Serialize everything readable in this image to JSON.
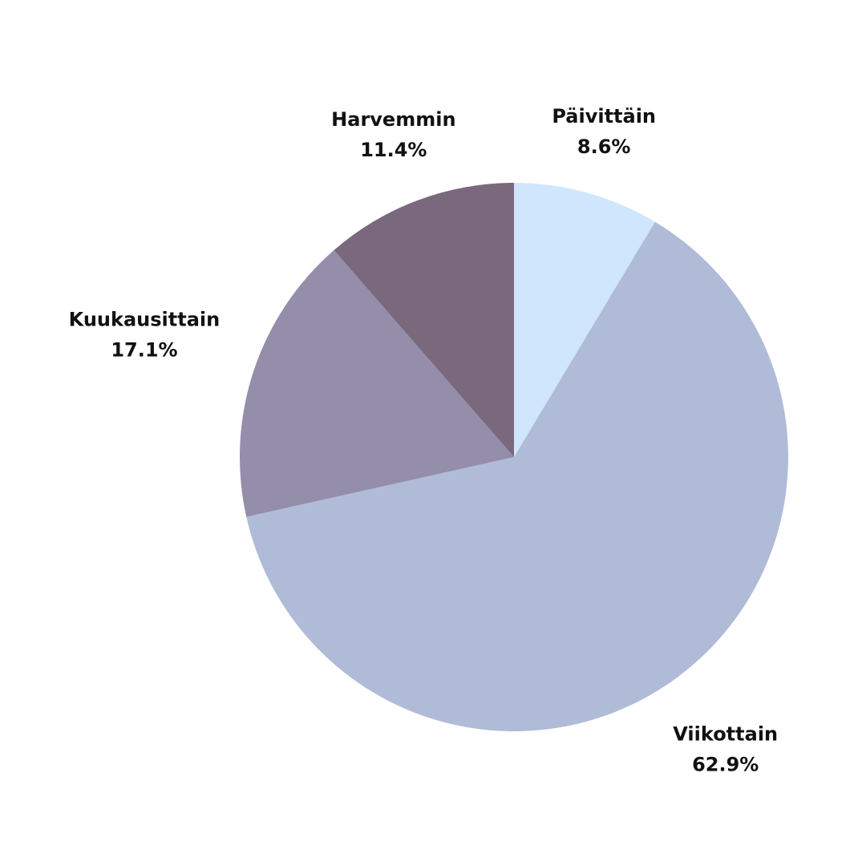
{
  "chart_data": {
    "type": "pie",
    "categories": [
      "Päivittäin",
      "Viikottain",
      "Kuukausittain",
      "Harvemmin"
    ],
    "values": [
      8.6,
      62.9,
      17.1,
      11.4
    ],
    "value_labels": [
      "8.6%",
      "62.9%",
      "17.1%",
      "11.4%"
    ],
    "colors": [
      "#cfe6fd",
      "#b0bbd7",
      "#948eab",
      "#7a687d"
    ]
  }
}
